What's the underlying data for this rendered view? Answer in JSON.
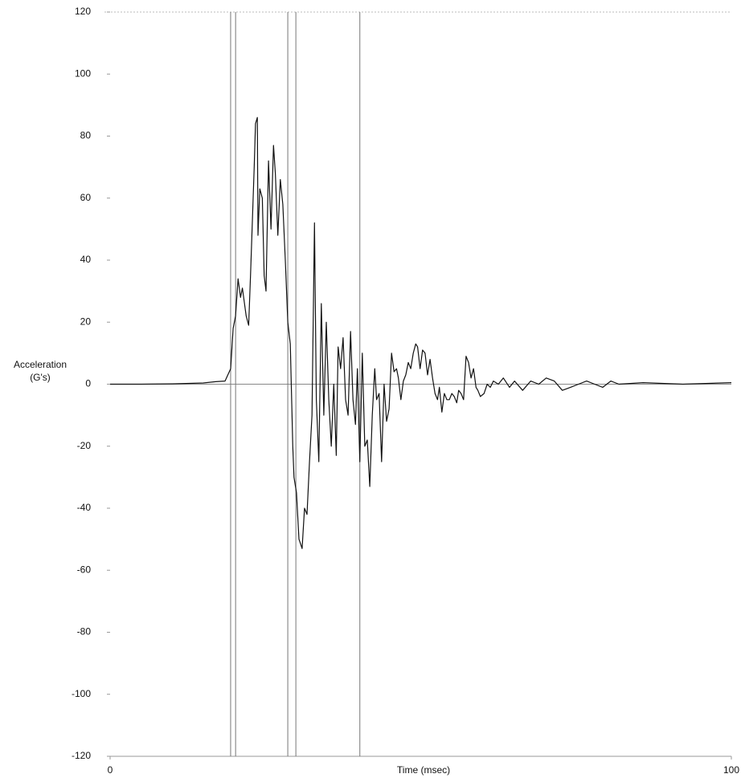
{
  "chart_data": {
    "type": "line",
    "y_label": [
      "Acceleration",
      "(G's)"
    ],
    "x_label": "Time (msec)",
    "xlim": [
      0,
      100
    ],
    "xticks": [
      0,
      100
    ],
    "ylim": [
      -120,
      120
    ],
    "yticks": [
      -120,
      -100,
      -80,
      -60,
      -40,
      -20,
      0,
      20,
      40,
      60,
      80,
      100,
      120
    ],
    "vlines": [
      19.4,
      20.2,
      28.6,
      29.9,
      40.2
    ],
    "zero_line": true,
    "series": [
      {
        "color": "#111111",
        "x": [
          0,
          5,
          10,
          15,
          17,
          18.5,
          19.4,
          19.8,
          20.2,
          20.6,
          21.0,
          21.3,
          21.9,
          22.3,
          22.6,
          23.2,
          23.4,
          23.7,
          23.8,
          24.1,
          24.5,
          24.8,
          25.1,
          25.5,
          25.9,
          26.3,
          26.6,
          27.0,
          27.4,
          27.8,
          28.2,
          28.6,
          29.0,
          29.4,
          29.6,
          30.0,
          30.4,
          30.9,
          31.3,
          31.7,
          32.1,
          32.5,
          32.9,
          33.2,
          33.6,
          34.0,
          34.4,
          34.8,
          35.2,
          35.6,
          36.0,
          36.4,
          36.7,
          37.1,
          37.5,
          37.9,
          38.3,
          38.7,
          39.1,
          39.5,
          39.8,
          40.2,
          40.6,
          41.0,
          41.4,
          41.8,
          42.2,
          42.6,
          42.9,
          43.3,
          43.7,
          44.1,
          44.5,
          44.9,
          45.3,
          45.7,
          46.1,
          46.4,
          46.8,
          47.2,
          47.6,
          48.0,
          48.4,
          48.8,
          49.2,
          49.5,
          49.9,
          50.3,
          50.7,
          51.1,
          51.5,
          51.9,
          52.3,
          52.7,
          53.0,
          53.4,
          53.8,
          54.2,
          54.6,
          55.0,
          55.4,
          55.8,
          56.1,
          56.5,
          56.9,
          57.3,
          57.7,
          58.1,
          58.5,
          58.9,
          59.2,
          59.6,
          60.2,
          60.7,
          61.2,
          61.7,
          62.5,
          63.3,
          64.3,
          65.1,
          66.4,
          67.7,
          69.0,
          70.2,
          71.5,
          72.8,
          74.1,
          75.4,
          76.7,
          78.0,
          79.3,
          80.6,
          81.9,
          85.8,
          92.2,
          100
        ],
        "values": [
          0,
          0,
          0.1,
          0.4,
          0.8,
          1,
          5,
          18,
          22,
          34,
          28,
          31,
          22,
          19,
          35,
          70,
          84,
          86,
          48,
          63,
          60,
          35,
          30,
          72,
          50,
          77,
          68,
          48,
          66,
          58,
          40,
          20,
          13,
          -20,
          -30,
          -35,
          -50,
          -53,
          -40,
          -42,
          -25,
          -10,
          52,
          -5,
          -25,
          26,
          -10,
          20,
          -5,
          -20,
          0,
          -23,
          12,
          5,
          15,
          -5,
          -10,
          17,
          -5,
          -13,
          5,
          -25,
          10,
          -20,
          -18,
          -33,
          -10,
          5,
          -5,
          -3,
          -25,
          0,
          -12,
          -8,
          10,
          4,
          5,
          2,
          -5,
          1,
          3,
          7,
          5,
          10,
          13,
          12,
          5,
          11,
          10,
          3,
          8,
          2,
          -3,
          -5,
          -1,
          -9,
          -3,
          -5,
          -5,
          -3,
          -4,
          -6,
          -2,
          -3,
          -5,
          9,
          7,
          2,
          5,
          -1,
          -2,
          -4,
          -3,
          0,
          -1,
          1,
          0,
          2,
          -1,
          1,
          -2,
          1,
          0,
          2,
          1,
          -2,
          -1,
          0,
          1,
          0,
          -1,
          1,
          0,
          0.5,
          0,
          0.5
        ]
      }
    ]
  }
}
